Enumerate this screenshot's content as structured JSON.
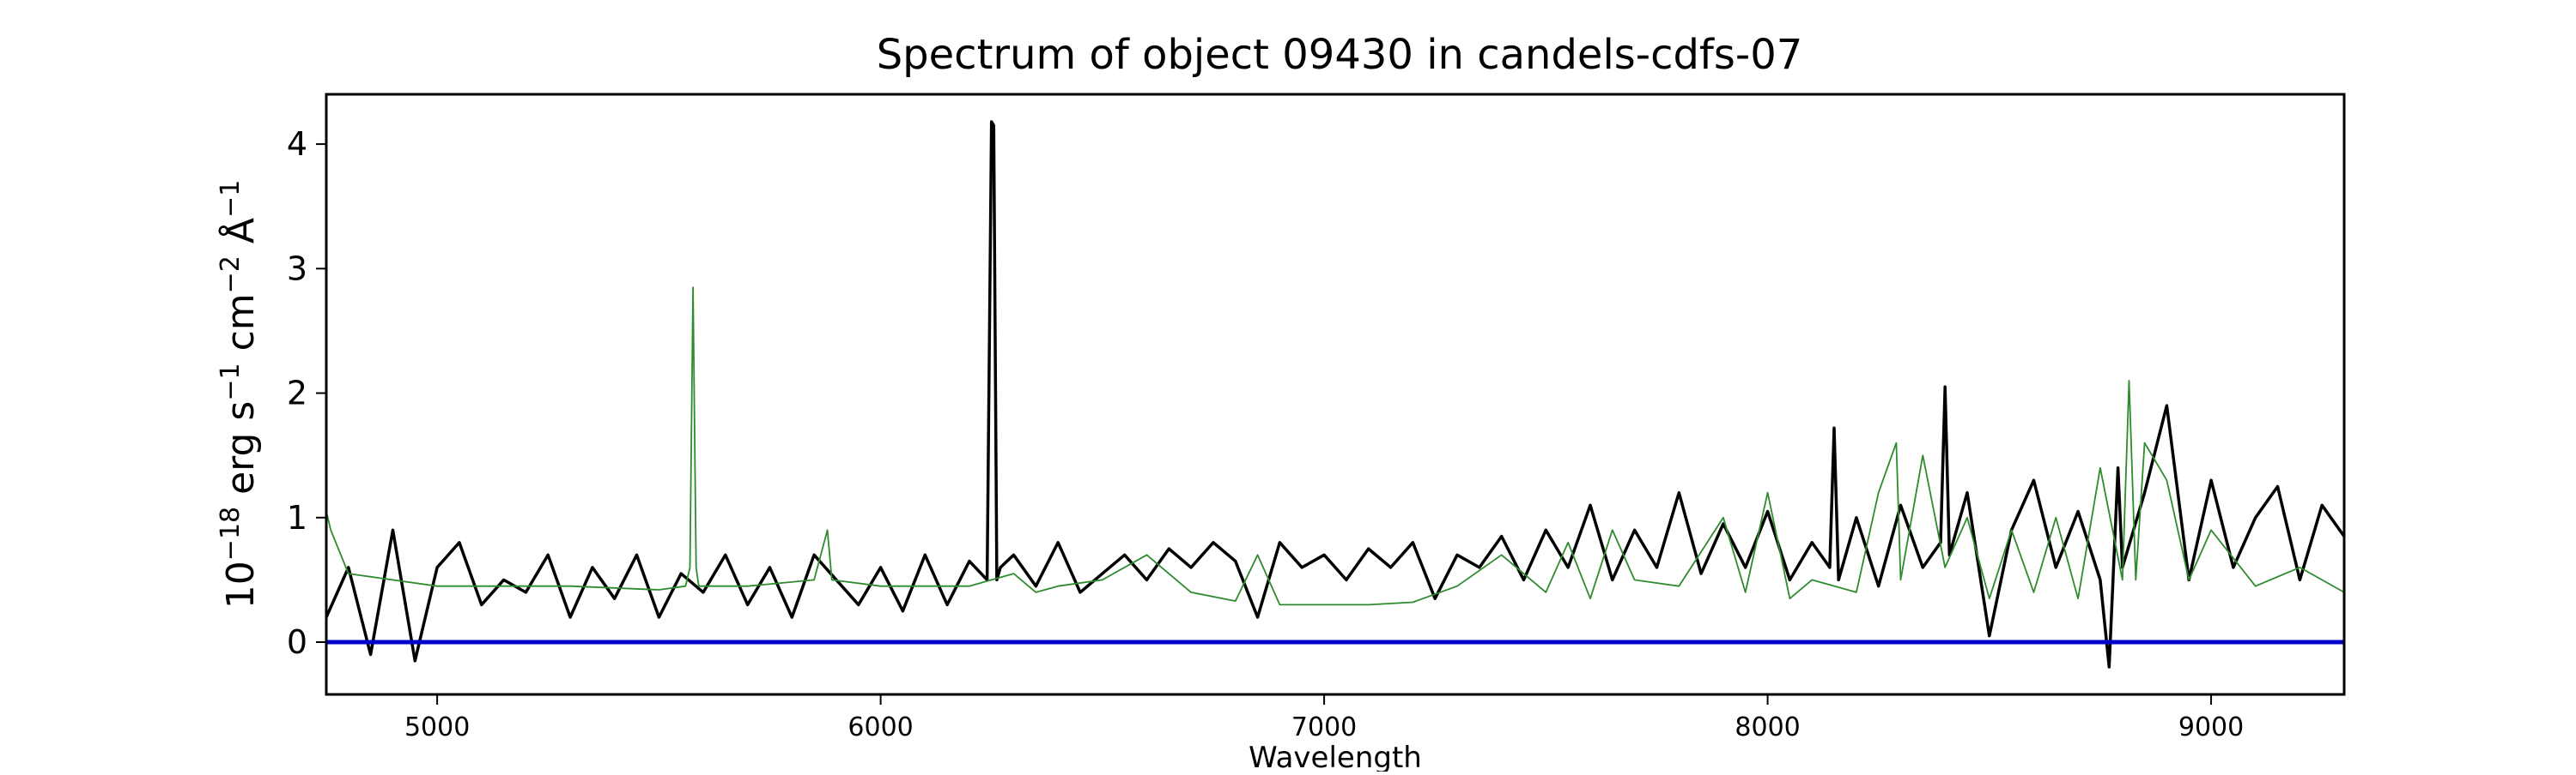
{
  "chart_data": {
    "type": "line",
    "title": "Spectrum of object 09430 in candels-cdfs-07",
    "xlabel": "Wavelength",
    "ylabel_parts": {
      "base": "10",
      "exp": "−18",
      "tail": " erg s",
      "s_exp": "−1",
      "cm": " cm",
      "cm_exp": "−2",
      "ang": " Å",
      "ang_exp": "−1"
    },
    "xlim": [
      4750,
      9300
    ],
    "ylim": [
      -0.42,
      4.4
    ],
    "xticks": [
      5000,
      6000,
      7000,
      8000,
      9000
    ],
    "xtick_labels": [
      "5000",
      "6000",
      "7000",
      "8000",
      "9000"
    ],
    "yticks": [
      0,
      1,
      2,
      3,
      4
    ],
    "ytick_labels": [
      "0",
      "1",
      "2",
      "3",
      "4"
    ],
    "grid": false,
    "legend": "none",
    "series": [
      {
        "role": "flux",
        "color": "#000000",
        "x": [
          4750,
          4800,
          4850,
          4900,
          4950,
          5000,
          5050,
          5100,
          5150,
          5200,
          5250,
          5300,
          5350,
          5400,
          5450,
          5500,
          5550,
          5600,
          5650,
          5700,
          5750,
          5800,
          5850,
          5900,
          5950,
          6000,
          6050,
          6100,
          6150,
          6200,
          6240,
          6250,
          6255,
          6262,
          6270,
          6300,
          6350,
          6400,
          6450,
          6500,
          6550,
          6600,
          6650,
          6700,
          6750,
          6800,
          6850,
          6900,
          6950,
          7000,
          7050,
          7100,
          7150,
          7200,
          7250,
          7300,
          7350,
          7400,
          7450,
          7500,
          7550,
          7600,
          7650,
          7700,
          7750,
          7800,
          7850,
          7900,
          7950,
          8000,
          8050,
          8100,
          8140,
          8150,
          8160,
          8200,
          8250,
          8300,
          8350,
          8390,
          8400,
          8410,
          8450,
          8500,
          8550,
          8600,
          8650,
          8700,
          8750,
          8770,
          8790,
          8800,
          8850,
          8900,
          8950,
          9000,
          9050,
          9100,
          9150,
          9200,
          9250,
          9300
        ],
        "y": [
          0.2,
          0.6,
          -0.1,
          0.9,
          -0.15,
          0.6,
          0.8,
          0.3,
          0.5,
          0.4,
          0.7,
          0.2,
          0.6,
          0.35,
          0.7,
          0.2,
          0.55,
          0.4,
          0.7,
          0.3,
          0.6,
          0.2,
          0.7,
          0.5,
          0.3,
          0.6,
          0.25,
          0.7,
          0.3,
          0.65,
          0.5,
          4.18,
          4.15,
          0.5,
          0.6,
          0.7,
          0.45,
          0.8,
          0.4,
          0.55,
          0.7,
          0.5,
          0.75,
          0.6,
          0.8,
          0.65,
          0.2,
          0.8,
          0.6,
          0.7,
          0.5,
          0.75,
          0.6,
          0.8,
          0.35,
          0.7,
          0.6,
          0.85,
          0.5,
          0.9,
          0.6,
          1.1,
          0.5,
          0.9,
          0.6,
          1.2,
          0.55,
          0.95,
          0.6,
          1.05,
          0.5,
          0.8,
          0.6,
          1.72,
          0.5,
          1.0,
          0.45,
          1.1,
          0.6,
          0.8,
          2.05,
          0.7,
          1.2,
          0.05,
          0.9,
          1.3,
          0.6,
          1.05,
          0.5,
          -0.2,
          1.4,
          0.6,
          1.2,
          1.9,
          0.5,
          1.3,
          0.6,
          1.0,
          1.25,
          0.5,
          1.1,
          0.85
        ]
      },
      {
        "role": "sky",
        "color": "#2e8b2e",
        "x": [
          4750,
          4760,
          4800,
          5000,
          5300,
          5500,
          5560,
          5570,
          5577,
          5584,
          5590,
          5700,
          5850,
          5880,
          5890,
          6000,
          6200,
          6300,
          6350,
          6400,
          6500,
          6600,
          6700,
          6800,
          6850,
          6900,
          7000,
          7100,
          7200,
          7300,
          7400,
          7500,
          7550,
          7600,
          7650,
          7700,
          7800,
          7900,
          7950,
          8000,
          8050,
          8100,
          8200,
          8250,
          8290,
          8300,
          8350,
          8400,
          8450,
          8500,
          8550,
          8600,
          8650,
          8700,
          8750,
          8800,
          8815,
          8830,
          8850,
          8900,
          8950,
          9000,
          9100,
          9200,
          9300
        ],
        "y": [
          1.05,
          0.9,
          0.55,
          0.45,
          0.45,
          0.42,
          0.45,
          0.6,
          2.85,
          0.6,
          0.45,
          0.45,
          0.5,
          0.9,
          0.5,
          0.45,
          0.45,
          0.55,
          0.4,
          0.45,
          0.5,
          0.7,
          0.4,
          0.33,
          0.7,
          0.3,
          0.3,
          0.3,
          0.32,
          0.45,
          0.7,
          0.4,
          0.8,
          0.35,
          0.9,
          0.5,
          0.45,
          1.0,
          0.4,
          1.2,
          0.35,
          0.5,
          0.4,
          1.2,
          1.6,
          0.5,
          1.5,
          0.6,
          1.0,
          0.35,
          0.9,
          0.4,
          1.0,
          0.35,
          1.4,
          0.5,
          2.1,
          0.5,
          1.6,
          1.3,
          0.5,
          0.9,
          0.45,
          0.6,
          0.4
        ]
      },
      {
        "role": "zero",
        "color": "#0000cc",
        "x": [
          4750,
          9300
        ],
        "y": [
          0,
          0
        ]
      }
    ]
  }
}
